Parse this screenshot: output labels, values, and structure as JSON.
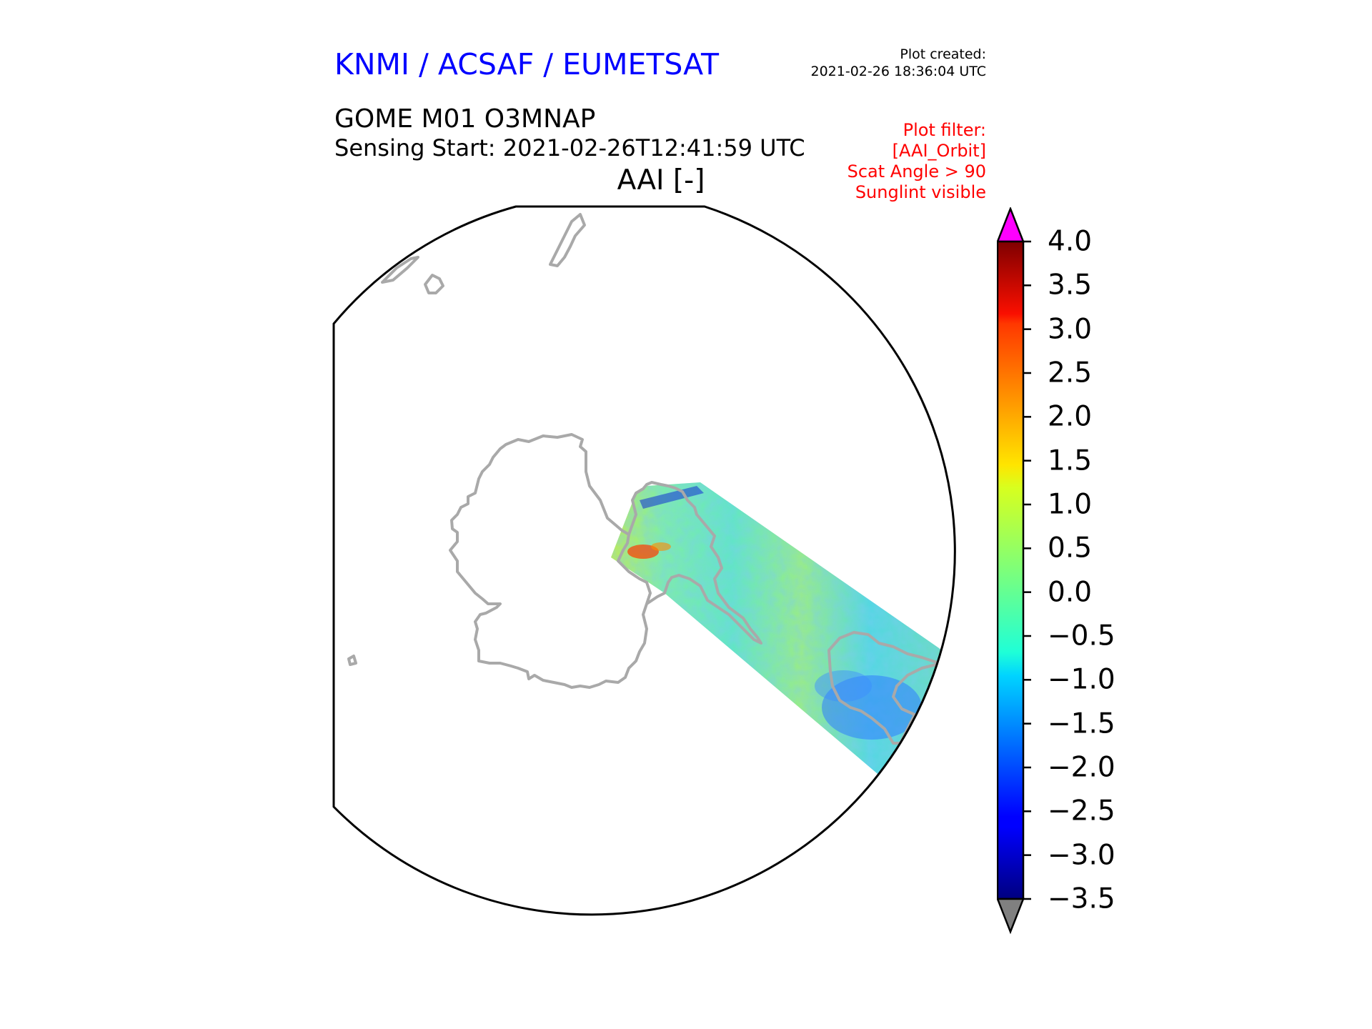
{
  "header": {
    "brand": "KNMI / ACSAF / EUMETSAT",
    "created_label": "Plot created:",
    "created_time": "2021-02-26 18:36:04 UTC",
    "product": "GOME M01 O3MNAP",
    "sensing": "Sensing Start: 2021-02-26T12:41:59 UTC",
    "variable": "AAI [-]"
  },
  "filter": {
    "lines": [
      "Plot filter:",
      "[AAI_Orbit]",
      "Scat Angle > 90",
      "Sunglint visible"
    ]
  },
  "colorbar": {
    "min": -3.5,
    "max": 4.0,
    "ticks": [
      "4.0",
      "3.5",
      "3.0",
      "2.5",
      "2.0",
      "1.5",
      "1.0",
      "0.5",
      "0.0",
      "−0.5",
      "−1.0",
      "−1.5",
      "−2.0",
      "−2.5",
      "−3.0",
      "−3.5"
    ],
    "colormap": "jet",
    "over_color": "#ff00ff",
    "under_color": "#808080"
  },
  "colors": {
    "brand": "#0000ff",
    "filter": "#ff0000",
    "coastline": "#a9a9a9"
  }
}
